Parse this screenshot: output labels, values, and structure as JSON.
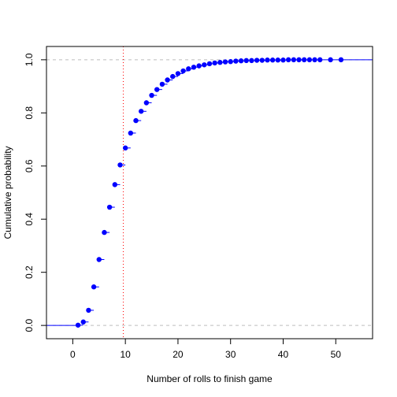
{
  "chart_data": {
    "type": "scatter",
    "title": "",
    "xlabel": "Number of rolls to finish game",
    "ylabel": "Cumulative probability",
    "xlim": [
      -5,
      57
    ],
    "ylim": [
      -0.05,
      1.05
    ],
    "x_ticks": [
      0,
      10,
      20,
      30,
      40,
      50
    ],
    "x_tick_labels": [
      "0",
      "10",
      "20",
      "30",
      "40",
      "50"
    ],
    "y_ticks": [
      0,
      0.2,
      0.4,
      0.6,
      0.8,
      1.0
    ],
    "y_tick_labels": [
      "0.0",
      "0.2",
      "0.4",
      "0.6",
      "0.8",
      "1.0"
    ],
    "grid": false,
    "plot_style": "step function (empirical CDF) with filled points",
    "reference_lines": {
      "horizontal": [
        0,
        1
      ],
      "vertical_mean": 9.6
    },
    "colors": {
      "points": "#0000ff",
      "steps": "#0000ff",
      "horizontal_reference": "#bebebe",
      "vertical_reference": "#ff0000"
    },
    "x": [
      1,
      2,
      3,
      4,
      5,
      6,
      7,
      8,
      9,
      10,
      11,
      12,
      13,
      14,
      15,
      16,
      17,
      18,
      19,
      20,
      21,
      22,
      23,
      24,
      25,
      26,
      27,
      28,
      29,
      30,
      31,
      32,
      33,
      34,
      35,
      36,
      37,
      38,
      39,
      40,
      41,
      42,
      43,
      44,
      45,
      46,
      47,
      49,
      51
    ],
    "y": [
      0.001,
      0.013,
      0.057,
      0.145,
      0.248,
      0.35,
      0.445,
      0.53,
      0.604,
      0.668,
      0.724,
      0.771,
      0.806,
      0.838,
      0.866,
      0.888,
      0.908,
      0.924,
      0.937,
      0.948,
      0.958,
      0.966,
      0.972,
      0.977,
      0.981,
      0.985,
      0.988,
      0.99,
      0.992,
      0.993,
      0.995,
      0.996,
      0.997,
      0.997,
      0.998,
      0.998,
      0.999,
      0.999,
      0.999,
      0.999,
      1.0,
      1.0,
      1.0,
      1.0,
      1.0,
      1.0,
      1.0,
      1.0,
      1.0
    ]
  }
}
